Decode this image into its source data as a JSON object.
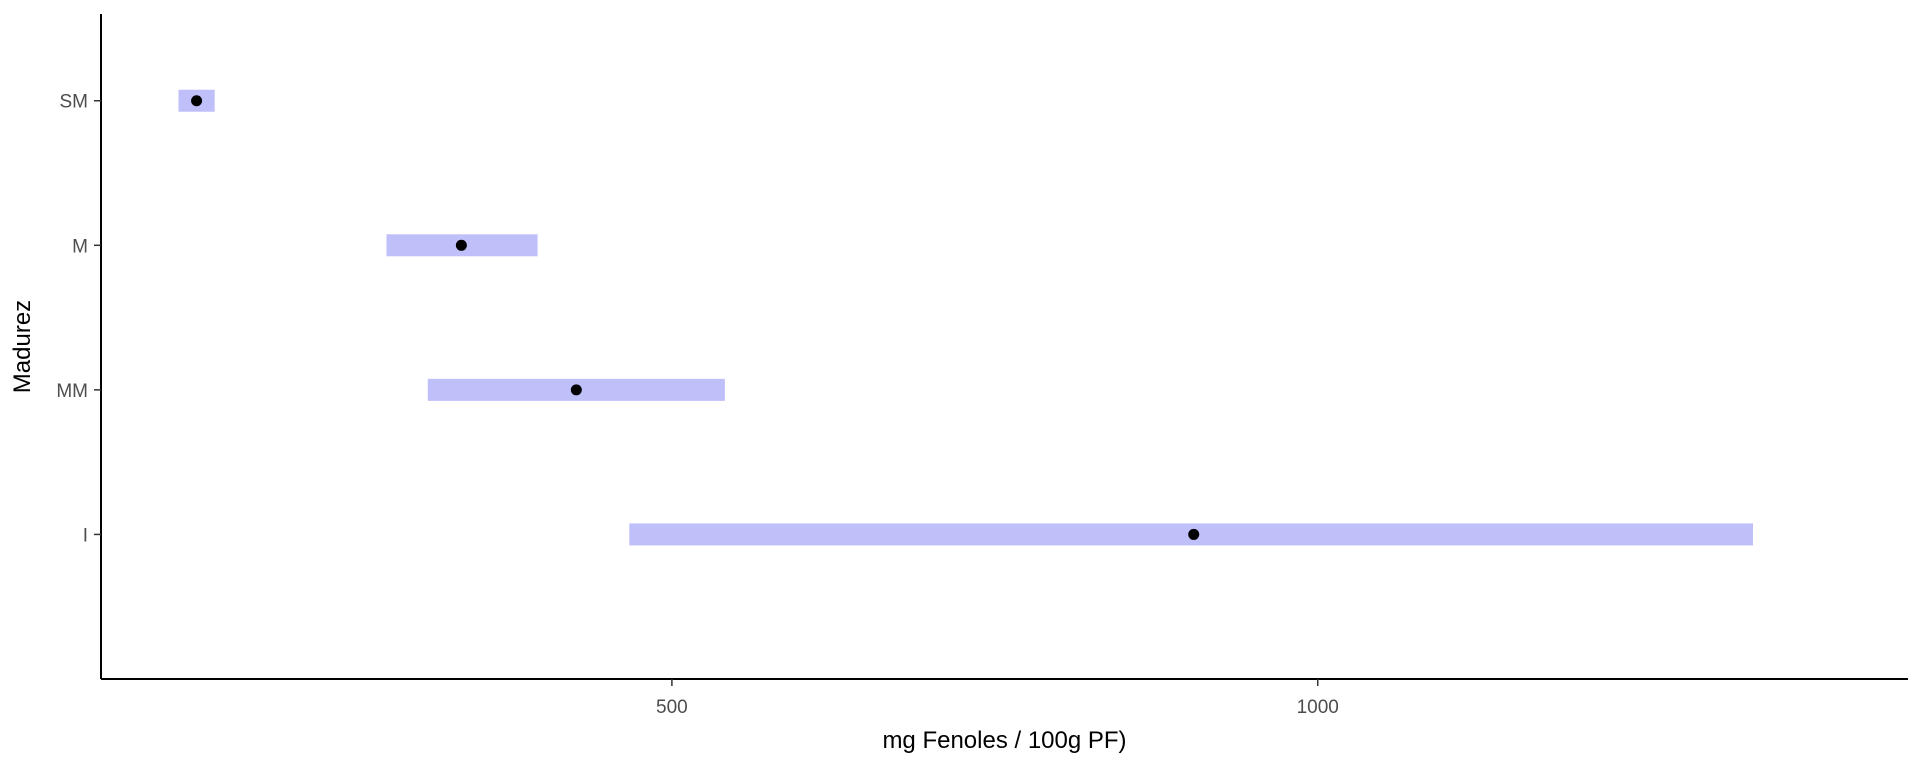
{
  "chart_data": {
    "type": "range",
    "xlabel": "mg Fenoles / 100g PF)",
    "ylabel": "Madurez",
    "xlim": [
      58,
      1457
    ],
    "x_ticks": [
      500,
      1000
    ],
    "x_tick_labels": [
      "500",
      "1000"
    ],
    "categories": [
      "SM",
      "M",
      "MM",
      "I"
    ],
    "points": [
      {
        "category": "SM",
        "value": 132,
        "low": 118,
        "high": 146
      },
      {
        "category": "M",
        "value": 337,
        "low": 279,
        "high": 396
      },
      {
        "category": "MM",
        "value": 426,
        "low": 311,
        "high": 541
      },
      {
        "category": "I",
        "value": 904,
        "low": 467,
        "high": 1337
      }
    ],
    "bar_color": "#bfbff9",
    "point_color": "#000000",
    "grid": false,
    "legend": "none"
  }
}
